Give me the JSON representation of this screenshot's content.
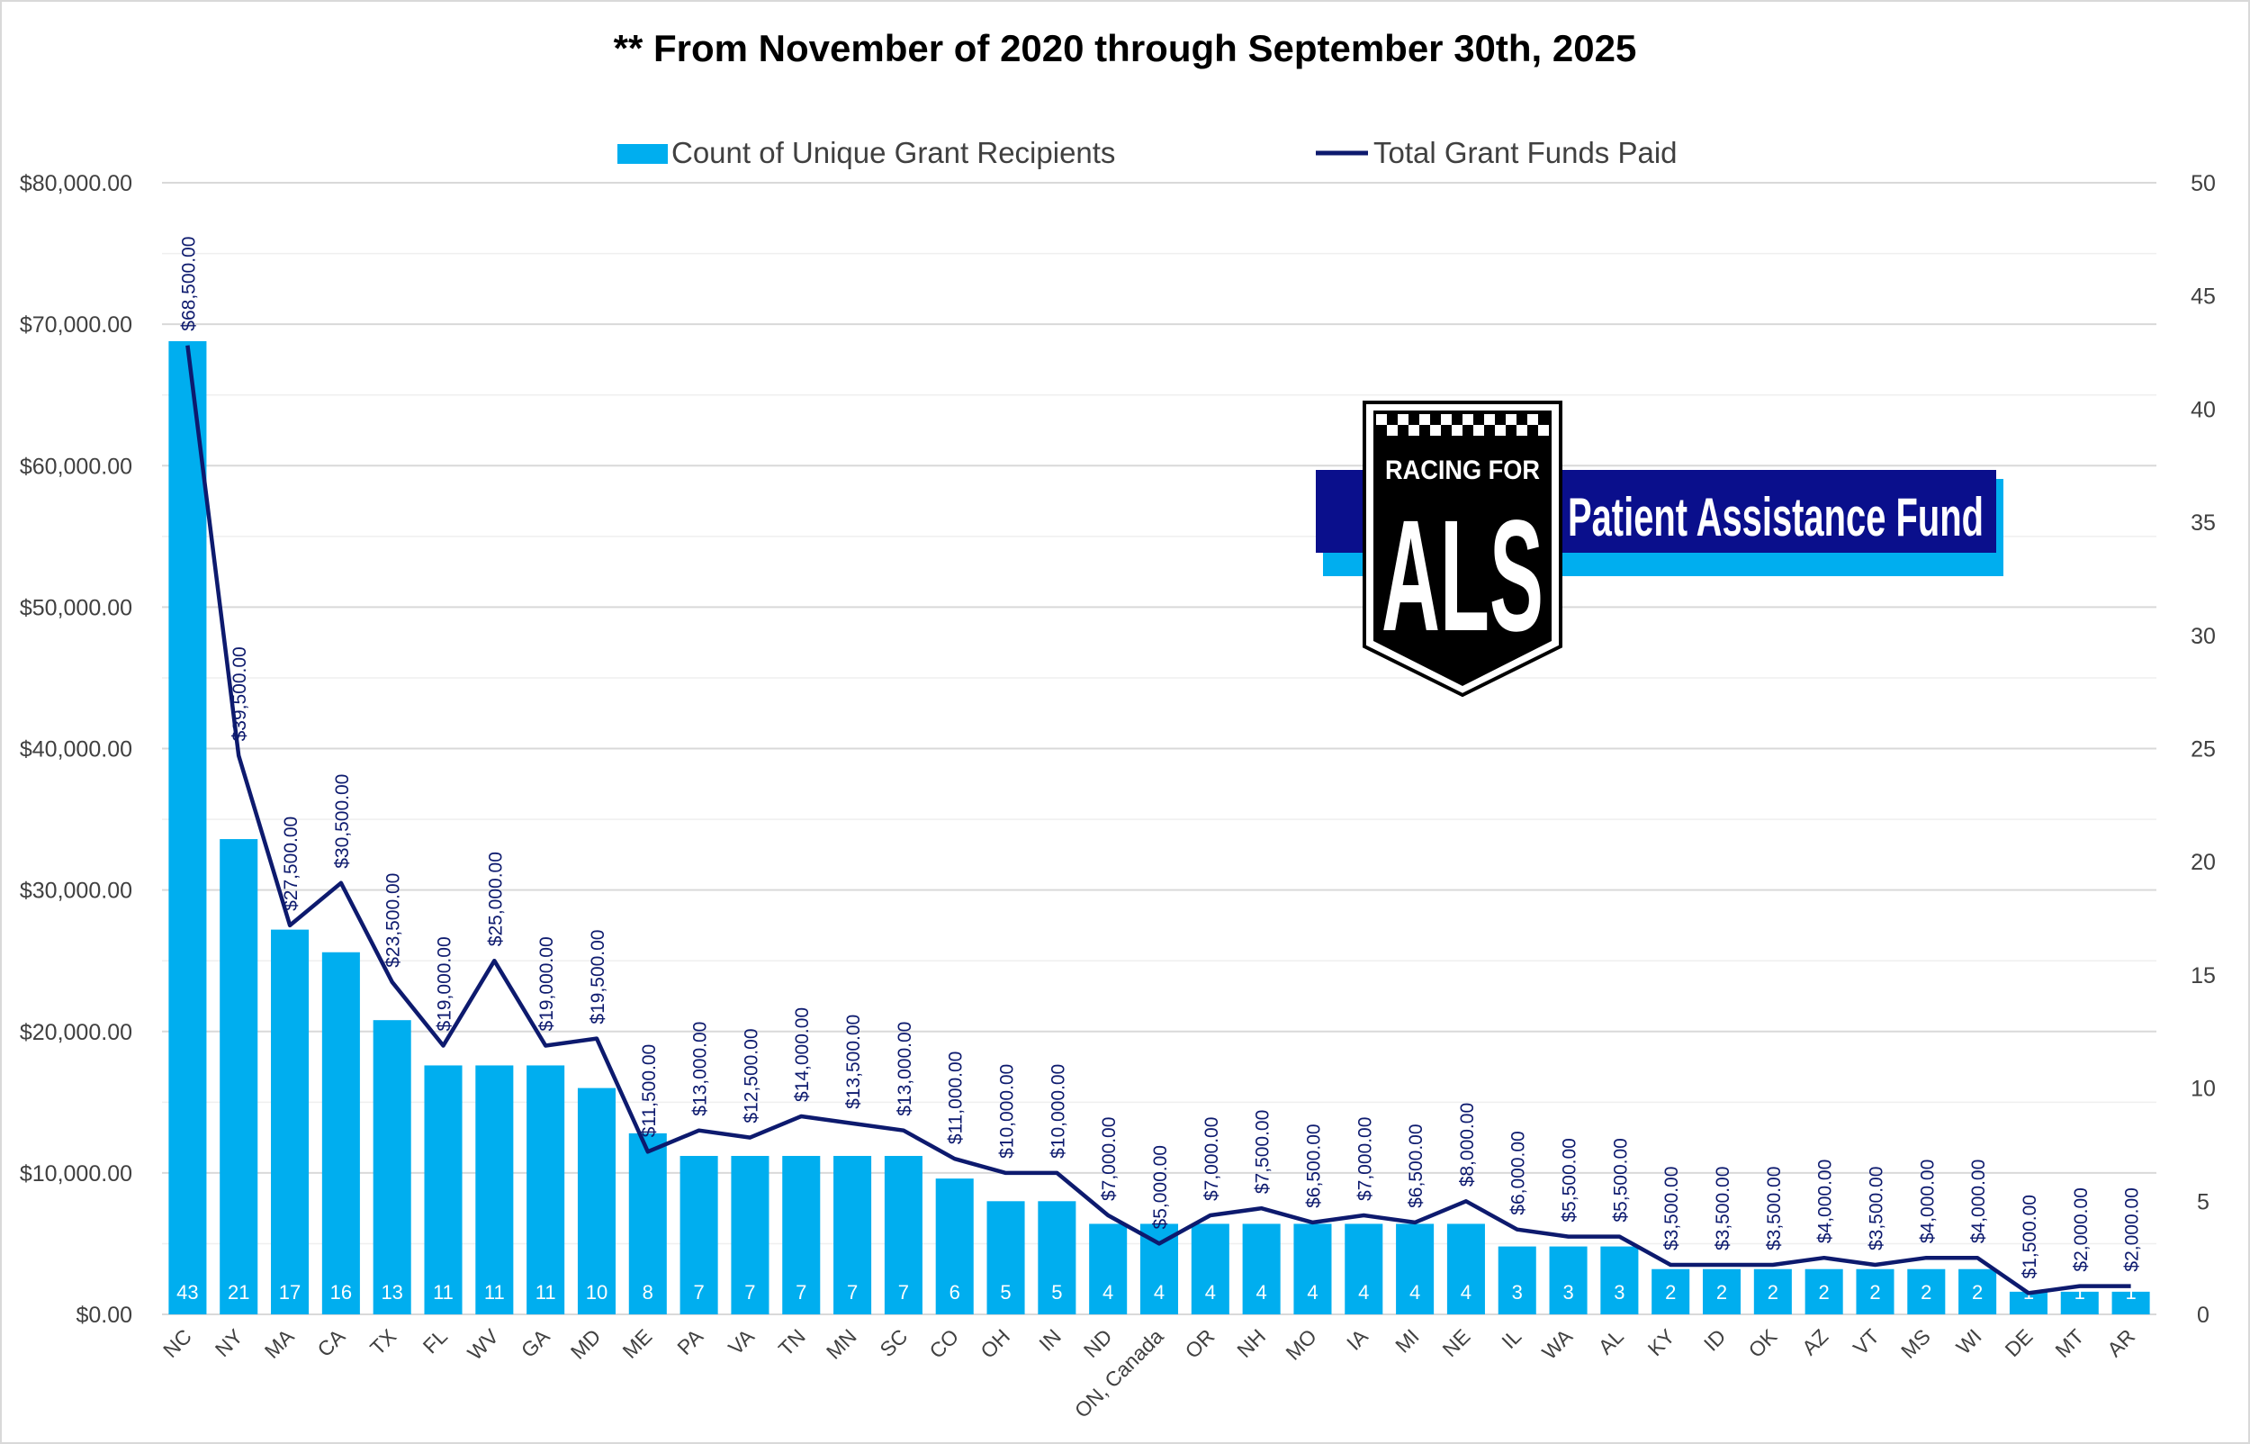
{
  "chart_data": {
    "type": "bar",
    "title": "** From November of 2020 through September 30th, 2025",
    "categories": [
      "NC",
      "NY",
      "MA",
      "CA",
      "TX",
      "FL",
      "WV",
      "GA",
      "MD",
      "ME",
      "PA",
      "VA",
      "TN",
      "MN",
      "SC",
      "CO",
      "OH",
      "IN",
      "ND",
      "ON, Canada",
      "OR",
      "NH",
      "MO",
      "IA",
      "MI",
      "NE",
      "IL",
      "WA",
      "AL",
      "KY",
      "ID",
      "OK",
      "AZ",
      "VT",
      "MS",
      "WI",
      "DE",
      "MT",
      "AR"
    ],
    "series": [
      {
        "name": "Count of Unique Grant Recipients",
        "type": "bar",
        "axis": "right",
        "values": [
          43,
          21,
          17,
          16,
          13,
          11,
          11,
          11,
          10,
          8,
          7,
          7,
          7,
          7,
          7,
          6,
          5,
          5,
          4,
          4,
          4,
          4,
          4,
          4,
          4,
          4,
          3,
          3,
          3,
          2,
          2,
          2,
          2,
          2,
          2,
          2,
          1,
          1,
          1
        ],
        "labels": [
          "43",
          "21",
          "17",
          "16",
          "13",
          "11",
          "11",
          "11",
          "10",
          "8",
          "7",
          "7",
          "7",
          "7",
          "7",
          "6",
          "5",
          "5",
          "4",
          "4",
          "4",
          "4",
          "4",
          "4",
          "4",
          "4",
          "3",
          "3",
          "3",
          "2",
          "2",
          "2",
          "2",
          "2",
          "2",
          "2",
          "1",
          "1",
          "1"
        ]
      },
      {
        "name": "Total Grant Funds Paid",
        "type": "line",
        "axis": "left",
        "values": [
          68500,
          39500,
          27500,
          30500,
          23500,
          19000,
          25000,
          19000,
          19500,
          11500,
          13000,
          12500,
          14000,
          13500,
          13000,
          11000,
          10000,
          10000,
          7000,
          5000,
          7000,
          7500,
          6500,
          7000,
          6500,
          8000,
          6000,
          5500,
          5500,
          3500,
          3500,
          3500,
          4000,
          3500,
          4000,
          4000,
          1500,
          2000,
          2000
        ],
        "labels": [
          "$68,500.00",
          "$39,500.00",
          "$27,500.00",
          "$30,500.00",
          "$23,500.00",
          "$19,000.00",
          "$25,000.00",
          "$19,000.00",
          "$19,500.00",
          "$11,500.00",
          "$13,000.00",
          "$12,500.00",
          "$14,000.00",
          "$13,500.00",
          "$13,000.00",
          "$11,000.00",
          "$10,000.00",
          "$10,000.00",
          "$7,000.00",
          "$5,000.00",
          "$7,000.00",
          "$7,500.00",
          "$6,500.00",
          "$7,000.00",
          "$6,500.00",
          "$8,000.00",
          "$6,000.00",
          "$5,500.00",
          "$5,500.00",
          "$3,500.00",
          "$3,500.00",
          "$3,500.00",
          "$4,000.00",
          "$3,500.00",
          "$4,000.00",
          "$4,000.00",
          "$1,500.00",
          "$2,000.00",
          "$2,000.00"
        ]
      }
    ],
    "y_left": {
      "range": [
        0,
        80000
      ],
      "ticks": [
        0,
        10000,
        20000,
        30000,
        40000,
        50000,
        60000,
        70000,
        80000
      ],
      "tick_labels": [
        "$0.00",
        "$10,000.00",
        "$20,000.00",
        "$30,000.00",
        "$40,000.00",
        "$50,000.00",
        "$60,000.00",
        "$70,000.00",
        "$80,000.00"
      ]
    },
    "y_right": {
      "range": [
        0,
        50
      ],
      "ticks": [
        0,
        5,
        10,
        15,
        20,
        25,
        30,
        35,
        40,
        45,
        50
      ],
      "tick_labels": [
        "0",
        "5",
        "10",
        "15",
        "20",
        "25",
        "30",
        "35",
        "40",
        "45",
        "50"
      ]
    },
    "legend": {
      "position": "top",
      "entries": [
        "Count of Unique Grant Recipients",
        "Total Grant Funds Paid"
      ]
    },
    "grid": true,
    "colors": {
      "bar": "#00AEEF",
      "line": "#0D1A6E",
      "text": "#404040",
      "grid": "#D9D9D9"
    }
  },
  "logo": {
    "shield_top": "RACING FOR",
    "shield_main": "ALS",
    "banner_text": "Patient Assistance Fund",
    "colors": {
      "banner_dark": "#0A0F8C",
      "banner_light": "#00AEEF",
      "shield": "#000000"
    }
  }
}
